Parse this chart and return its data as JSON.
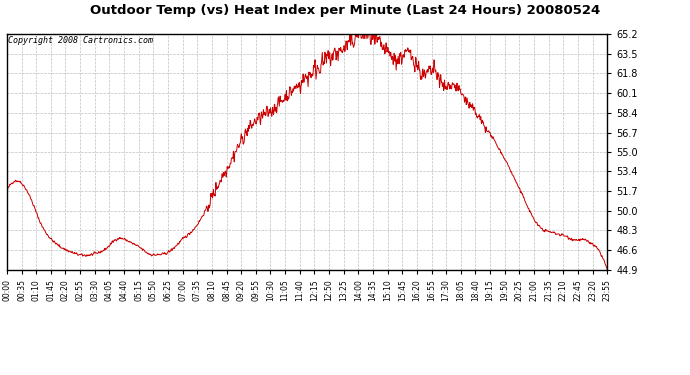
{
  "title": "Outdoor Temp (vs) Heat Index per Minute (Last 24 Hours) 20080524",
  "copyright": "Copyright 2008 Cartronics.com",
  "line_color": "#cc0000",
  "bg_color": "#ffffff",
  "grid_color": "#b0b0b0",
  "yticks": [
    44.9,
    46.6,
    48.3,
    50.0,
    51.7,
    53.4,
    55.0,
    56.7,
    58.4,
    60.1,
    61.8,
    63.5,
    65.2
  ],
  "ymin": 44.9,
  "ymax": 65.2,
  "xtick_labels": [
    "00:00",
    "00:35",
    "01:10",
    "01:45",
    "02:20",
    "02:55",
    "03:30",
    "04:05",
    "04:40",
    "05:15",
    "05:50",
    "06:25",
    "07:00",
    "07:35",
    "08:10",
    "08:45",
    "09:20",
    "09:55",
    "10:30",
    "11:05",
    "11:40",
    "12:15",
    "12:50",
    "13:25",
    "14:00",
    "14:35",
    "15:10",
    "15:45",
    "16:20",
    "16:55",
    "17:30",
    "18:05",
    "18:40",
    "19:15",
    "19:50",
    "20:25",
    "21:00",
    "21:35",
    "22:10",
    "22:45",
    "23:20",
    "23:55"
  ],
  "base_profile_minutes": [
    0,
    30,
    60,
    80,
    100,
    120,
    150,
    175,
    200,
    220,
    240,
    260,
    300,
    320,
    340,
    360,
    390,
    420,
    450,
    480,
    510,
    540,
    570,
    600,
    630,
    660,
    690,
    720,
    750,
    770,
    790,
    810,
    825,
    840,
    855,
    870,
    885,
    900,
    915,
    930,
    945,
    960,
    970,
    980,
    990,
    1000,
    1010,
    1020,
    1030,
    1040,
    1050,
    1060,
    1080,
    1100,
    1120,
    1140,
    1160,
    1180,
    1200,
    1220,
    1240,
    1260,
    1280,
    1300,
    1320,
    1340,
    1360,
    1380,
    1400,
    1420,
    1439
  ],
  "base_profile_values": [
    51.7,
    52.5,
    50.8,
    49.0,
    47.8,
    47.1,
    46.5,
    46.2,
    46.2,
    46.4,
    46.8,
    47.5,
    47.2,
    46.8,
    46.3,
    46.2,
    46.5,
    47.5,
    48.5,
    50.3,
    52.5,
    54.5,
    56.5,
    57.8,
    58.5,
    59.5,
    60.5,
    61.5,
    62.5,
    63.0,
    63.5,
    64.0,
    64.5,
    65.0,
    65.2,
    65.0,
    64.5,
    64.0,
    63.5,
    63.0,
    63.2,
    63.5,
    63.3,
    62.8,
    62.0,
    61.5,
    61.8,
    62.0,
    61.8,
    61.0,
    60.5,
    60.8,
    60.5,
    59.5,
    58.5,
    57.5,
    56.5,
    55.3,
    54.0,
    52.5,
    51.0,
    49.5,
    48.5,
    48.2,
    48.0,
    47.8,
    47.5,
    47.5,
    47.2,
    46.5,
    44.9
  ]
}
